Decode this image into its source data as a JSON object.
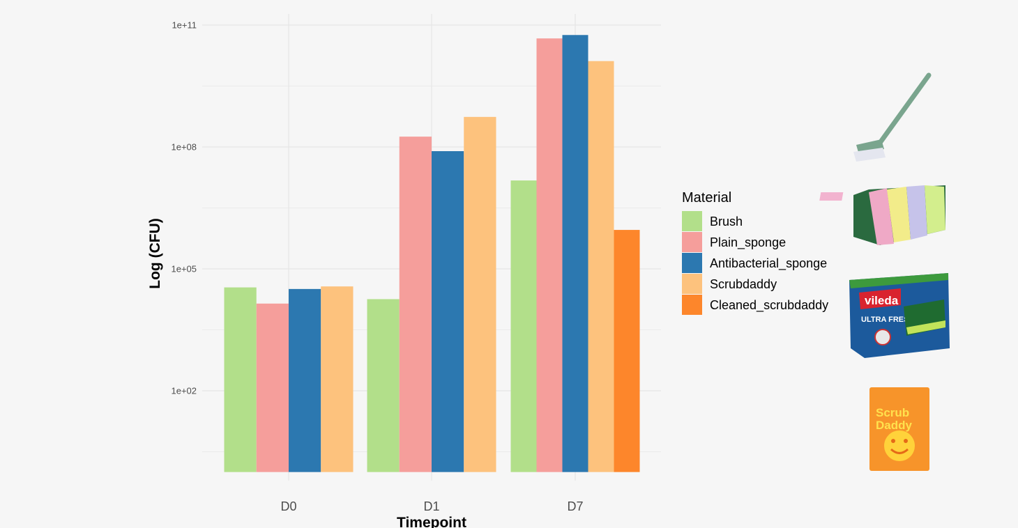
{
  "chart_data": {
    "type": "bar",
    "title": "",
    "xlabel": "Timepoint",
    "ylabel": "Log (CFU)",
    "y_scale": "log10",
    "ylim": [
      1,
      100000000000.0
    ],
    "y_ticks": [
      100,
      100000,
      100000000,
      100000000000
    ],
    "y_tick_labels": [
      "1e+02",
      "1e+05",
      "1e+08",
      "1e+11"
    ],
    "grid": true,
    "categories": [
      "D0",
      "D1",
      "D7"
    ],
    "legend": {
      "title": "Material",
      "placement": "right"
    },
    "series": [
      {
        "name": "Brush",
        "color": "#b2df8a",
        "values": [
          35000,
          18000,
          15000000
        ]
      },
      {
        "name": "Plain_sponge",
        "color": "#f59e9b",
        "values": [
          14000,
          180000000,
          47000000000
        ]
      },
      {
        "name": "Antibacterial_sponge",
        "color": "#2c78b0",
        "values": [
          32000,
          79000000,
          57000000000
        ]
      },
      {
        "name": "Scrubdaddy",
        "color": "#fdc27d",
        "values": [
          37000,
          550000000,
          13000000000
        ]
      },
      {
        "name": "Cleaned_scrubdaddy",
        "color": "#fd862b",
        "values": [
          null,
          null,
          910000
        ]
      }
    ]
  },
  "images": {
    "brush": "brush-icon",
    "sponges": "sponge-pack-icon",
    "antibacterial": {
      "icon": "vileda-pack-icon",
      "logo_text": "vileda",
      "subtitle": "ULTRA FRESH"
    },
    "scrubdaddy": {
      "icon": "scrub-daddy-pack-icon",
      "logo_text": "Scrub Daddy"
    }
  }
}
